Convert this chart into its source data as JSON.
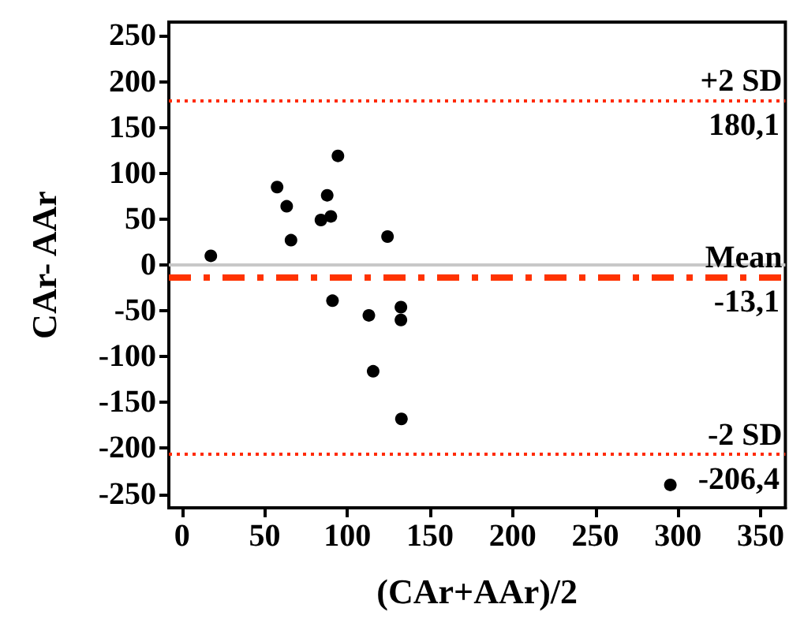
{
  "chart_data": {
    "type": "scatter",
    "xlabel": "(CAr+AAr)/2",
    "ylabel": "CAr- AAr",
    "series": [
      {
        "color": "#000000",
        "x": [
          17.4,
          57.5,
          63.3,
          65.9,
          84,
          87.8,
          90,
          94.3,
          91,
          124.3,
          113,
          132.4,
          132.4,
          115.6,
          132.7,
          295.4
        ],
        "values": [
          10,
          85,
          64,
          27,
          49,
          76,
          53,
          119,
          -39,
          31,
          -55,
          -46,
          -60,
          -116,
          -168,
          -240
        ]
      }
    ],
    "xlim": [
      -8,
      365
    ],
    "xticks": [
      0,
      50,
      100,
      150,
      200,
      250,
      300,
      350
    ],
    "ylim": [
      -265,
      265
    ],
    "yticks": [
      -250,
      -200,
      -150,
      -100,
      -50,
      0,
      50,
      100,
      150,
      200,
      250
    ],
    "grid": false,
    "marker": "circle",
    "ref_lines": [
      {
        "axis": "y",
        "value": 0,
        "label": null,
        "color": "#c8c8c8",
        "line_style": "solid"
      },
      {
        "axis": "y",
        "value": 180.1,
        "label": "+2 SD",
        "color": "#ff2a00",
        "line_style": "dotted"
      },
      {
        "axis": "y",
        "value": -13.1,
        "label": "Mean",
        "color": "#ff3300",
        "line_style": "dashdot"
      },
      {
        "axis": "y",
        "value": -206.4,
        "label": "-2 SD",
        "color": "#ff2a00",
        "line_style": "dotted"
      }
    ],
    "annotations": [
      {
        "text": "180,1",
        "y": 180.1
      },
      {
        "text": "-13,1",
        "y": -13.1
      },
      {
        "text": "-206,4",
        "y": -206.4
      }
    ]
  }
}
